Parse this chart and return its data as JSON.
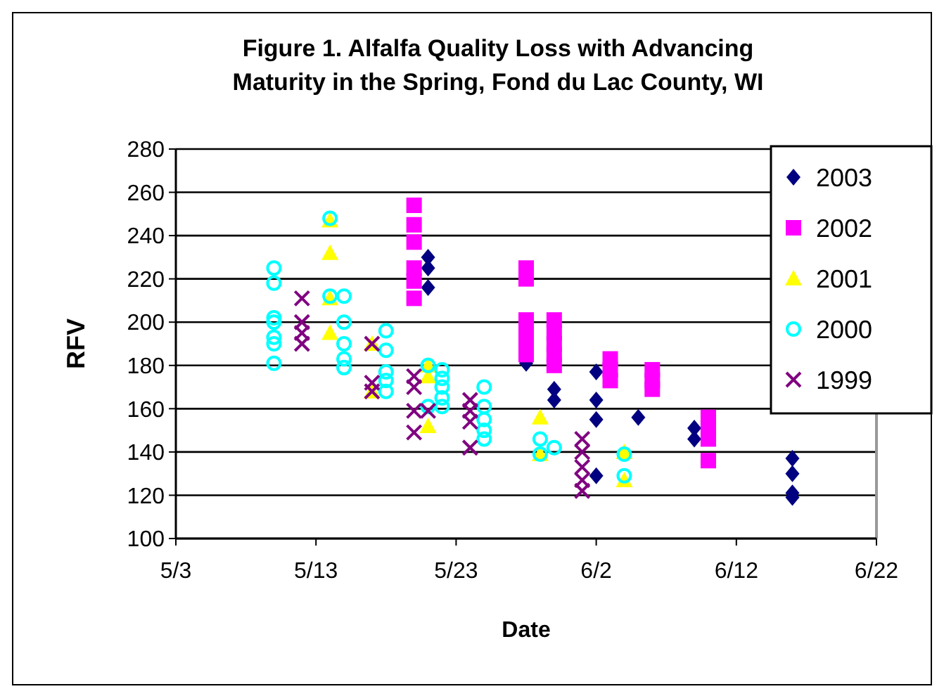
{
  "chart_data": {
    "type": "scatter",
    "title": "Figure 1. Alfalfa Quality Loss with Advancing Maturity in the Spring, Fond du Lac County, WI",
    "xlabel": "Date",
    "ylabel": "RFV",
    "xlim": [
      "--05-03",
      "--06-22"
    ],
    "xticks": [
      {
        "value": "--05-03",
        "label": "5/3"
      },
      {
        "value": "--05-13",
        "label": "5/13"
      },
      {
        "value": "--05-23",
        "label": "5/23"
      },
      {
        "value": "--06-02",
        "label": "6/2"
      },
      {
        "value": "--06-12",
        "label": "6/12"
      },
      {
        "value": "--06-22",
        "label": "6/22"
      }
    ],
    "ylim": [
      100,
      280
    ],
    "yticks": [
      100,
      120,
      140,
      160,
      180,
      200,
      220,
      240,
      260,
      280
    ],
    "grid": "y",
    "legend": "top right",
    "series": [
      {
        "name": "2003",
        "color": "#000080",
        "marker": "diamond",
        "x": [
          "--05-21",
          "--05-21",
          "--05-21",
          "--05-28",
          "--05-30",
          "--05-30",
          "--06-02",
          "--06-02",
          "--06-02",
          "--06-02",
          "--06-05",
          "--06-09",
          "--06-09",
          "--06-16",
          "--06-16",
          "--06-16",
          "--06-16"
        ],
        "values": [
          230,
          225,
          216,
          181,
          169,
          164,
          177,
          164,
          155,
          129,
          156,
          151,
          146,
          137,
          130,
          121,
          119
        ]
      },
      {
        "name": "2002",
        "color": "#ff00ff",
        "marker": "square",
        "x": [
          "--05-20",
          "--05-20",
          "--05-20",
          "--05-20",
          "--05-20",
          "--05-20",
          "--05-28",
          "--05-28",
          "--05-28",
          "--05-28",
          "--05-28",
          "--05-28",
          "--05-30",
          "--05-30",
          "--05-30",
          "--05-30",
          "--05-30",
          "--06-03",
          "--06-03",
          "--06-03",
          "--06-06",
          "--06-06",
          "--06-06",
          "--06-10",
          "--06-10",
          "--06-10",
          "--06-10"
        ],
        "values": [
          254,
          245,
          237,
          225,
          219,
          211,
          225,
          220,
          201,
          195,
          190,
          185,
          201,
          195,
          190,
          185,
          180,
          183,
          178,
          173,
          178,
          173,
          169,
          156,
          151,
          146,
          136
        ]
      },
      {
        "name": "2001",
        "color": "#ffff00",
        "marker": "triangle",
        "x": [
          "--05-14",
          "--05-14",
          "--05-14",
          "--05-14",
          "--05-17",
          "--05-17",
          "--05-21",
          "--05-21",
          "--05-21",
          "--05-29",
          "--05-29",
          "--06-04",
          "--06-04"
        ],
        "values": [
          247,
          232,
          211,
          195,
          190,
          168,
          180,
          175,
          152,
          156,
          139,
          140,
          127
        ]
      },
      {
        "name": "2000",
        "color": "#00ffff",
        "marker": "circle",
        "x": [
          "--05-10",
          "--05-10",
          "--05-10",
          "--05-10",
          "--05-10",
          "--05-10",
          "--05-10",
          "--05-14",
          "--05-14",
          "--05-15",
          "--05-15",
          "--05-15",
          "--05-15",
          "--05-15",
          "--05-18",
          "--05-18",
          "--05-18",
          "--05-18",
          "--05-18",
          "--05-21",
          "--05-21",
          "--05-22",
          "--05-22",
          "--05-22",
          "--05-22",
          "--05-22",
          "--05-25",
          "--05-25",
          "--05-25",
          "--05-25",
          "--05-25",
          "--05-29",
          "--05-29",
          "--05-30",
          "--06-04",
          "--06-04"
        ],
        "values": [
          225,
          218,
          202,
          200,
          193,
          190,
          181,
          248,
          212,
          212,
          200,
          190,
          183,
          179,
          196,
          187,
          177,
          173,
          168,
          180,
          161,
          178,
          174,
          170,
          165,
          161,
          170,
          161,
          155,
          150,
          146,
          146,
          139,
          142,
          139,
          129
        ]
      },
      {
        "name": "1999",
        "color": "#800080",
        "marker": "cross",
        "x": [
          "--05-12",
          "--05-12",
          "--05-12",
          "--05-12",
          "--05-17",
          "--05-17",
          "--05-17",
          "--05-20",
          "--05-20",
          "--05-20",
          "--05-20",
          "--05-21",
          "--05-24",
          "--05-24",
          "--05-24",
          "--05-24",
          "--06-01",
          "--06-01",
          "--06-01",
          "--06-01",
          "--06-01"
        ],
        "values": [
          211,
          200,
          195,
          190,
          190,
          172,
          168,
          175,
          170,
          159,
          149,
          159,
          164,
          159,
          154,
          142,
          146,
          140,
          133,
          127,
          122
        ]
      }
    ]
  }
}
